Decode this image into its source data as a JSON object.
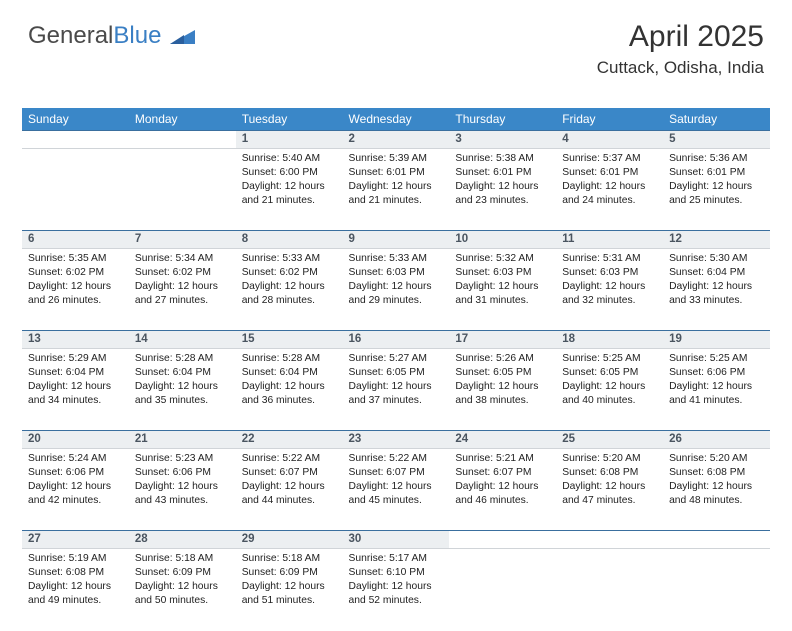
{
  "logo": {
    "text1": "General",
    "text2": "Blue"
  },
  "title": "April 2025",
  "location": "Cuttack, Odisha, India",
  "colors": {
    "header_bg": "#3a87c8",
    "header_border": "#3a6f9e",
    "daynum_bg": "#eceff1",
    "text": "#222222"
  },
  "weekdays": [
    "Sunday",
    "Monday",
    "Tuesday",
    "Wednesday",
    "Thursday",
    "Friday",
    "Saturday"
  ],
  "weeks": [
    [
      null,
      null,
      {
        "n": "1",
        "sr": "5:40 AM",
        "ss": "6:00 PM",
        "dl": "12 hours and 21 minutes."
      },
      {
        "n": "2",
        "sr": "5:39 AM",
        "ss": "6:01 PM",
        "dl": "12 hours and 21 minutes."
      },
      {
        "n": "3",
        "sr": "5:38 AM",
        "ss": "6:01 PM",
        "dl": "12 hours and 23 minutes."
      },
      {
        "n": "4",
        "sr": "5:37 AM",
        "ss": "6:01 PM",
        "dl": "12 hours and 24 minutes."
      },
      {
        "n": "5",
        "sr": "5:36 AM",
        "ss": "6:01 PM",
        "dl": "12 hours and 25 minutes."
      }
    ],
    [
      {
        "n": "6",
        "sr": "5:35 AM",
        "ss": "6:02 PM",
        "dl": "12 hours and 26 minutes."
      },
      {
        "n": "7",
        "sr": "5:34 AM",
        "ss": "6:02 PM",
        "dl": "12 hours and 27 minutes."
      },
      {
        "n": "8",
        "sr": "5:33 AM",
        "ss": "6:02 PM",
        "dl": "12 hours and 28 minutes."
      },
      {
        "n": "9",
        "sr": "5:33 AM",
        "ss": "6:03 PM",
        "dl": "12 hours and 29 minutes."
      },
      {
        "n": "10",
        "sr": "5:32 AM",
        "ss": "6:03 PM",
        "dl": "12 hours and 31 minutes."
      },
      {
        "n": "11",
        "sr": "5:31 AM",
        "ss": "6:03 PM",
        "dl": "12 hours and 32 minutes."
      },
      {
        "n": "12",
        "sr": "5:30 AM",
        "ss": "6:04 PM",
        "dl": "12 hours and 33 minutes."
      }
    ],
    [
      {
        "n": "13",
        "sr": "5:29 AM",
        "ss": "6:04 PM",
        "dl": "12 hours and 34 minutes."
      },
      {
        "n": "14",
        "sr": "5:28 AM",
        "ss": "6:04 PM",
        "dl": "12 hours and 35 minutes."
      },
      {
        "n": "15",
        "sr": "5:28 AM",
        "ss": "6:04 PM",
        "dl": "12 hours and 36 minutes."
      },
      {
        "n": "16",
        "sr": "5:27 AM",
        "ss": "6:05 PM",
        "dl": "12 hours and 37 minutes."
      },
      {
        "n": "17",
        "sr": "5:26 AM",
        "ss": "6:05 PM",
        "dl": "12 hours and 38 minutes."
      },
      {
        "n": "18",
        "sr": "5:25 AM",
        "ss": "6:05 PM",
        "dl": "12 hours and 40 minutes."
      },
      {
        "n": "19",
        "sr": "5:25 AM",
        "ss": "6:06 PM",
        "dl": "12 hours and 41 minutes."
      }
    ],
    [
      {
        "n": "20",
        "sr": "5:24 AM",
        "ss": "6:06 PM",
        "dl": "12 hours and 42 minutes."
      },
      {
        "n": "21",
        "sr": "5:23 AM",
        "ss": "6:06 PM",
        "dl": "12 hours and 43 minutes."
      },
      {
        "n": "22",
        "sr": "5:22 AM",
        "ss": "6:07 PM",
        "dl": "12 hours and 44 minutes."
      },
      {
        "n": "23",
        "sr": "5:22 AM",
        "ss": "6:07 PM",
        "dl": "12 hours and 45 minutes."
      },
      {
        "n": "24",
        "sr": "5:21 AM",
        "ss": "6:07 PM",
        "dl": "12 hours and 46 minutes."
      },
      {
        "n": "25",
        "sr": "5:20 AM",
        "ss": "6:08 PM",
        "dl": "12 hours and 47 minutes."
      },
      {
        "n": "26",
        "sr": "5:20 AM",
        "ss": "6:08 PM",
        "dl": "12 hours and 48 minutes."
      }
    ],
    [
      {
        "n": "27",
        "sr": "5:19 AM",
        "ss": "6:08 PM",
        "dl": "12 hours and 49 minutes."
      },
      {
        "n": "28",
        "sr": "5:18 AM",
        "ss": "6:09 PM",
        "dl": "12 hours and 50 minutes."
      },
      {
        "n": "29",
        "sr": "5:18 AM",
        "ss": "6:09 PM",
        "dl": "12 hours and 51 minutes."
      },
      {
        "n": "30",
        "sr": "5:17 AM",
        "ss": "6:10 PM",
        "dl": "12 hours and 52 minutes."
      },
      null,
      null,
      null
    ]
  ],
  "labels": {
    "sunrise": "Sunrise: ",
    "sunset": "Sunset: ",
    "daylight": "Daylight: "
  }
}
